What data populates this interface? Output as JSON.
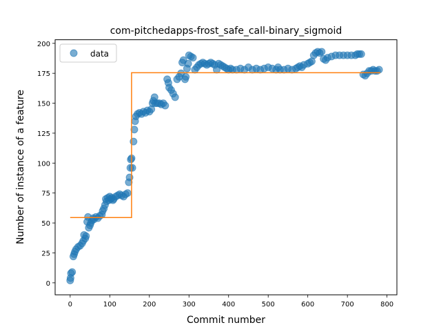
{
  "chart_data": {
    "type": "scatter",
    "title": "com-pitchedapps-frost_safe_call-binary_sigmoid",
    "xlabel": "Commit number",
    "ylabel": "Number of instance of a feature",
    "xlim": [
      -38,
      825
    ],
    "ylim": [
      -10,
      203
    ],
    "xticks": [
      0,
      100,
      200,
      300,
      400,
      500,
      600,
      700,
      800
    ],
    "yticks": [
      0,
      25,
      50,
      75,
      100,
      125,
      150,
      175,
      200
    ],
    "grid": false,
    "legend": {
      "placement": "top-left",
      "entries": [
        {
          "label": "data",
          "color": "#1f77b4",
          "marker": "circle"
        }
      ]
    },
    "series": [
      {
        "name": "data",
        "kind": "scatter",
        "color": "#1f77b4",
        "points": [
          [
            0,
            2
          ],
          [
            1,
            4
          ],
          [
            2,
            8
          ],
          [
            5,
            9
          ],
          [
            8,
            22
          ],
          [
            10,
            24
          ],
          [
            12,
            26
          ],
          [
            15,
            28
          ],
          [
            20,
            30
          ],
          [
            25,
            31
          ],
          [
            30,
            33
          ],
          [
            33,
            35
          ],
          [
            35,
            40
          ],
          [
            38,
            37
          ],
          [
            40,
            39
          ],
          [
            43,
            51
          ],
          [
            45,
            55
          ],
          [
            47,
            46
          ],
          [
            50,
            48
          ],
          [
            52,
            50
          ],
          [
            55,
            52
          ],
          [
            58,
            54
          ],
          [
            60,
            53
          ],
          [
            65,
            55
          ],
          [
            70,
            54
          ],
          [
            75,
            56
          ],
          [
            80,
            57
          ],
          [
            82,
            60
          ],
          [
            85,
            62
          ],
          [
            88,
            65
          ],
          [
            90,
            70
          ],
          [
            92,
            68
          ],
          [
            95,
            71
          ],
          [
            98,
            69
          ],
          [
            100,
            72
          ],
          [
            103,
            70
          ],
          [
            105,
            71
          ],
          [
            108,
            69
          ],
          [
            110,
            70
          ],
          [
            115,
            72
          ],
          [
            120,
            73
          ],
          [
            125,
            74
          ],
          [
            130,
            73
          ],
          [
            135,
            72
          ],
          [
            140,
            74
          ],
          [
            145,
            75
          ],
          [
            148,
            84
          ],
          [
            150,
            88
          ],
          [
            152,
            96
          ],
          [
            153,
            103
          ],
          [
            155,
            104
          ],
          [
            157,
            96
          ],
          [
            160,
            118
          ],
          [
            162,
            128
          ],
          [
            164,
            135
          ],
          [
            166,
            139
          ],
          [
            170,
            141
          ],
          [
            175,
            142
          ],
          [
            180,
            141
          ],
          [
            185,
            143
          ],
          [
            190,
            142
          ],
          [
            195,
            144
          ],
          [
            200,
            143
          ],
          [
            205,
            145
          ],
          [
            208,
            150
          ],
          [
            210,
            152
          ],
          [
            213,
            155
          ],
          [
            215,
            150
          ],
          [
            220,
            150
          ],
          [
            225,
            150
          ],
          [
            230,
            149
          ],
          [
            235,
            150
          ],
          [
            240,
            148
          ],
          [
            245,
            170
          ],
          [
            248,
            167
          ],
          [
            250,
            163
          ],
          [
            255,
            161
          ],
          [
            260,
            158
          ],
          [
            265,
            155
          ],
          [
            270,
            170
          ],
          [
            275,
            172
          ],
          [
            280,
            175
          ],
          [
            283,
            184
          ],
          [
            286,
            186
          ],
          [
            290,
            170
          ],
          [
            292,
            172
          ],
          [
            295,
            179
          ],
          [
            298,
            183
          ],
          [
            300,
            190
          ],
          [
            305,
            189
          ],
          [
            310,
            188
          ],
          [
            315,
            178
          ],
          [
            320,
            180
          ],
          [
            325,
            182
          ],
          [
            330,
            183
          ],
          [
            335,
            184
          ],
          [
            340,
            183
          ],
          [
            345,
            182
          ],
          [
            350,
            183
          ],
          [
            355,
            184
          ],
          [
            360,
            183
          ],
          [
            365,
            182
          ],
          [
            370,
            178
          ],
          [
            375,
            183
          ],
          [
            380,
            182
          ],
          [
            385,
            181
          ],
          [
            390,
            180
          ],
          [
            395,
            179
          ],
          [
            400,
            178
          ],
          [
            405,
            179
          ],
          [
            410,
            178
          ],
          [
            420,
            178
          ],
          [
            430,
            179
          ],
          [
            440,
            178
          ],
          [
            450,
            180
          ],
          [
            460,
            178
          ],
          [
            470,
            179
          ],
          [
            480,
            178
          ],
          [
            490,
            179
          ],
          [
            500,
            180
          ],
          [
            510,
            179
          ],
          [
            520,
            178
          ],
          [
            525,
            180
          ],
          [
            530,
            178
          ],
          [
            540,
            178
          ],
          [
            550,
            179
          ],
          [
            560,
            178
          ],
          [
            570,
            179
          ],
          [
            575,
            180
          ],
          [
            580,
            181
          ],
          [
            585,
            180
          ],
          [
            590,
            182
          ],
          [
            600,
            183
          ],
          [
            605,
            184
          ],
          [
            610,
            185
          ],
          [
            615,
            190
          ],
          [
            620,
            192
          ],
          [
            625,
            193
          ],
          [
            630,
            192
          ],
          [
            635,
            193
          ],
          [
            640,
            187
          ],
          [
            645,
            186
          ],
          [
            650,
            188
          ],
          [
            660,
            189
          ],
          [
            670,
            190
          ],
          [
            680,
            190
          ],
          [
            690,
            190
          ],
          [
            700,
            190
          ],
          [
            710,
            190
          ],
          [
            720,
            190
          ],
          [
            725,
            191
          ],
          [
            730,
            191
          ],
          [
            735,
            191
          ],
          [
            740,
            174
          ],
          [
            745,
            173
          ],
          [
            750,
            175
          ],
          [
            755,
            177
          ],
          [
            760,
            177
          ],
          [
            765,
            178
          ],
          [
            770,
            177
          ],
          [
            775,
            177
          ],
          [
            780,
            178
          ]
        ]
      },
      {
        "name": "",
        "kind": "line",
        "color": "#ff7f0e",
        "points": [
          [
            0,
            54.5
          ],
          [
            155,
            54.5
          ],
          [
            155,
            175.5
          ],
          [
            783,
            175.5
          ]
        ]
      }
    ]
  }
}
